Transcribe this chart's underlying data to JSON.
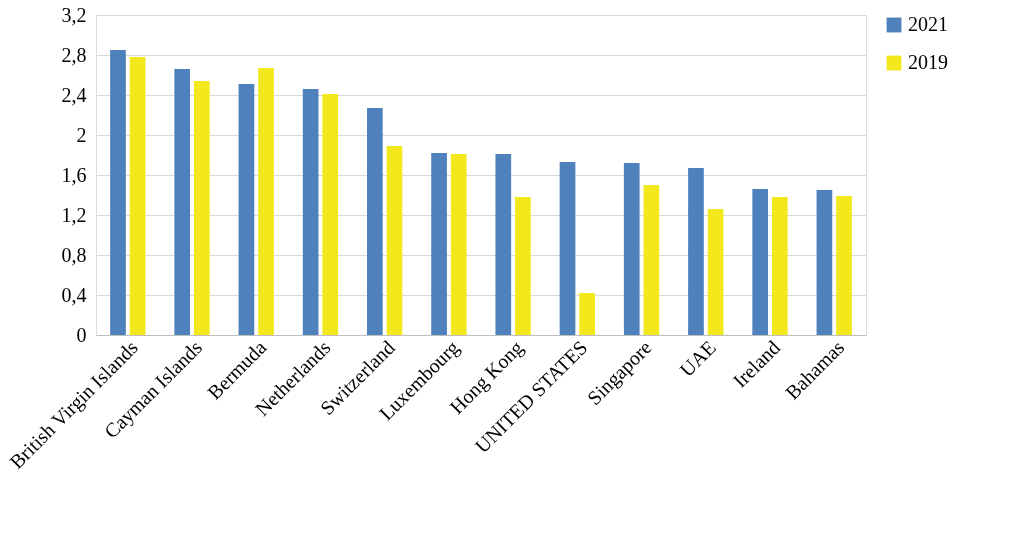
{
  "chart_data": {
    "type": "bar",
    "categories": [
      "British Virgin Islands",
      "Cayman Islands",
      "Bermuda",
      "Netherlands",
      "Switzerland",
      "Luxembourg",
      "Hong Kong",
      "UNITED STATES",
      "Singapore",
      "UAE",
      "Ireland",
      "Bahamas"
    ],
    "series": [
      {
        "name": "2021",
        "color": "#4f81bd",
        "values": [
          2.85,
          2.66,
          2.51,
          2.46,
          2.27,
          1.82,
          1.81,
          1.73,
          1.72,
          1.67,
          1.46,
          1.45
        ]
      },
      {
        "name": "2019",
        "color": "#f2e81c",
        "values": [
          2.78,
          2.54,
          2.67,
          2.41,
          1.89,
          1.81,
          1.38,
          0.42,
          1.5,
          1.26,
          1.38,
          1.39
        ]
      }
    ],
    "ylim": [
      0,
      3.2
    ],
    "yticks": [
      0,
      {
        "value": 0.4,
        "label": "0,4"
      },
      {
        "value": 0.8,
        "label": "0,8"
      },
      {
        "value": 1.2,
        "label": "1,2"
      },
      {
        "value": 1.6,
        "label": "1,6"
      },
      2,
      {
        "value": 2.4,
        "label": "2,4"
      },
      {
        "value": 2.8,
        "label": "2,8"
      },
      {
        "value": 3.2,
        "label": "3,2"
      }
    ],
    "grid": "y",
    "legend": "right"
  }
}
